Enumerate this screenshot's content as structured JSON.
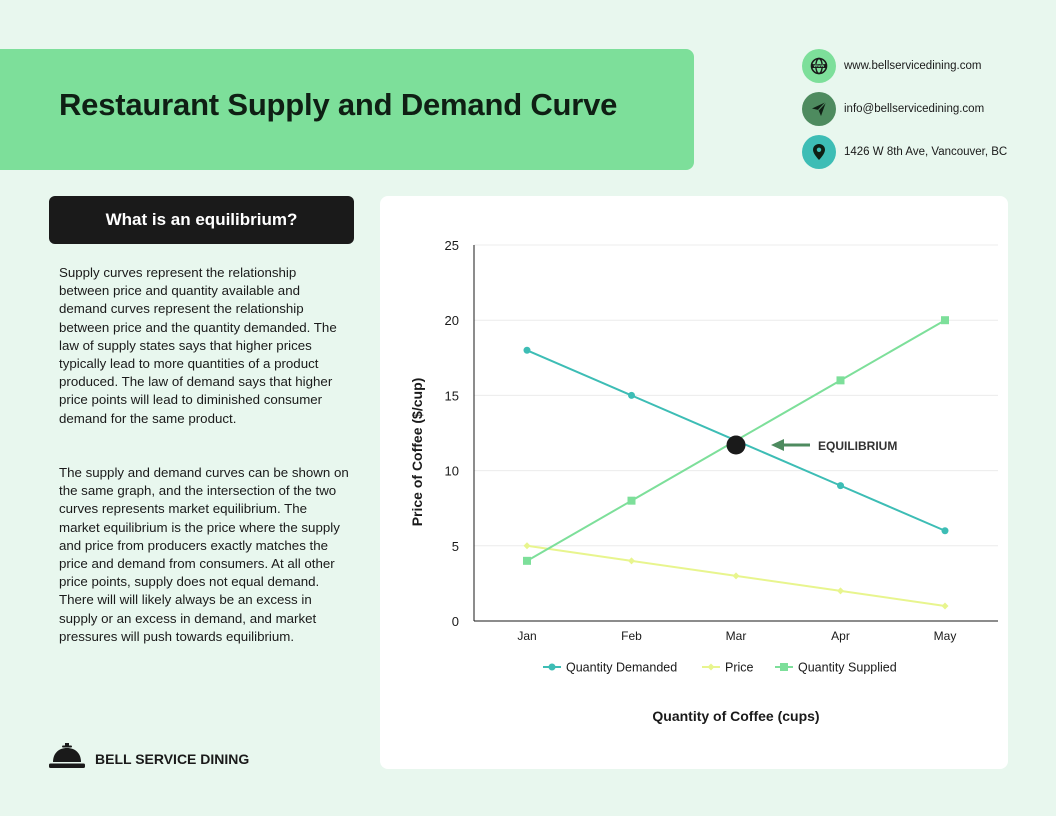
{
  "header": {
    "title": "Restaurant Supply and Demand Curve"
  },
  "contact": {
    "website": "www.bellservicedining.com",
    "email": "info@bellservicedining.com",
    "address": "1426 W 8th Ave, Vancouver, BC",
    "icons": [
      "globe-icon",
      "send-icon",
      "location-pin-icon"
    ]
  },
  "section": {
    "heading": "What is an equilibrium?",
    "paragraph_1": "Supply curves represent the relationship between price and quantity available and demand curves represent the relationship between price and the quantity demanded. The law of supply states says that higher prices typically lead to more quantities of a product produced. The law of demand says that higher price points will lead to diminished consumer demand for the same product.",
    "paragraph_2": "The supply and demand curves can be shown on the same graph, and the intersection of the two curves represents market equilibrium. The market equilibrium is the price where the supply and price from producers exactly matches the price and demand from consumers. At all other price points, supply does not equal demand. There will will likely always be an excess in supply or an excess in demand, and market pressures will push towards equilibrium."
  },
  "brand": {
    "name": "BELL SERVICE DINING",
    "icon": "service-bell-icon"
  },
  "colors": {
    "background": "#e8f7ee",
    "banner": "#7ddf9a",
    "demand": "#3dbdb5",
    "price": "#e8f58e",
    "supply": "#7ddf9a",
    "arrow": "#4e8b5f",
    "dark": "#1a1a1a"
  },
  "chart_data": {
    "type": "line",
    "categories": [
      "Jan",
      "Feb",
      "Mar",
      "Apr",
      "May"
    ],
    "series": [
      {
        "name": "Quantity Demanded",
        "values": [
          18,
          15,
          12,
          9,
          6
        ],
        "marker": "circle",
        "color": "#3dbdb5"
      },
      {
        "name": "Price",
        "values": [
          5,
          4,
          3,
          2,
          1
        ],
        "marker": "diamond",
        "color": "#e8f58e"
      },
      {
        "name": "Quantity Supplied",
        "values": [
          4,
          8,
          12,
          16,
          20
        ],
        "marker": "square",
        "color": "#7ddf9a"
      }
    ],
    "xlabel": "Quantity of Coffee (cups)",
    "ylabel": "Price of Coffee ($/cup)",
    "ylim": [
      0,
      25
    ],
    "yticks": [
      0,
      5,
      10,
      15,
      20,
      25
    ],
    "grid": true,
    "legend": "bottom",
    "annotation": {
      "text": "EQUILIBRIUM",
      "x": "Mar",
      "y": 11.7
    }
  }
}
